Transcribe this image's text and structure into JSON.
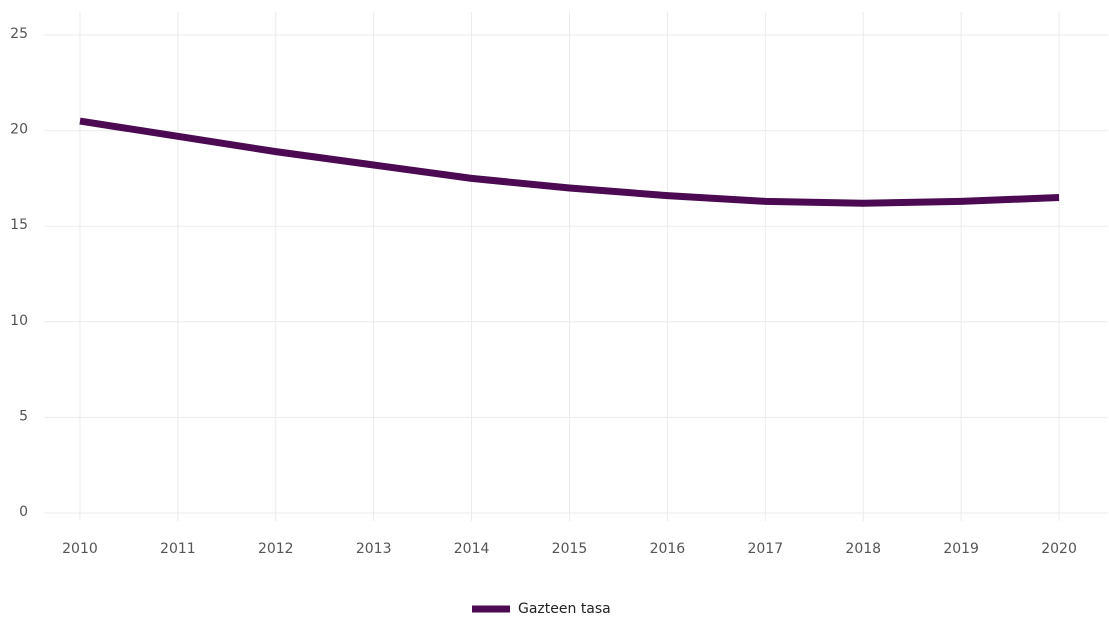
{
  "chart_data": {
    "type": "line",
    "categories": [
      "2010",
      "2011",
      "2012",
      "2013",
      "2014",
      "2015",
      "2016",
      "2017",
      "2018",
      "2019",
      "2020"
    ],
    "series": [
      {
        "name": "Gazteen tasa",
        "color": "#4b0a52",
        "values": [
          20.5,
          19.7,
          18.9,
          18.2,
          17.5,
          17.0,
          16.6,
          16.3,
          16.2,
          16.3,
          16.5
        ]
      }
    ],
    "ylim": [
      0,
      25
    ],
    "yticks": [
      0,
      5,
      10,
      15,
      20,
      25
    ],
    "grid": true,
    "legend": "bottom"
  }
}
